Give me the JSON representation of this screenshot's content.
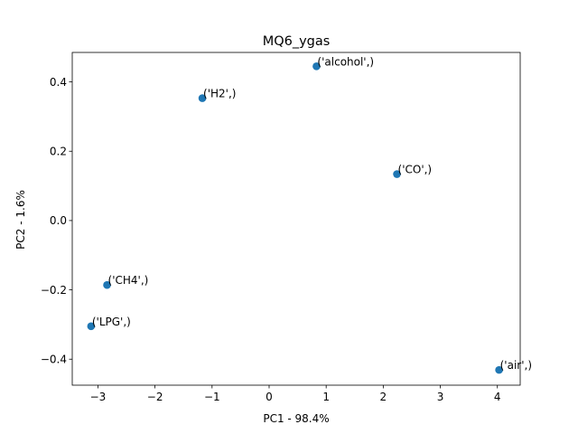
{
  "chart_data": {
    "type": "scatter",
    "title": "MQ6_ygas",
    "xlabel": "PC1 - 98.4%",
    "ylabel": "PC2 - 1.6%",
    "xlim": [
      -3.45,
      4.4
    ],
    "ylim": [
      -0.475,
      0.485
    ],
    "xticks": [
      -3,
      -2,
      -1,
      0,
      1,
      2,
      3,
      4
    ],
    "xtick_labels": [
      "−3",
      "−2",
      "−1",
      "0",
      "1",
      "2",
      "3",
      "4"
    ],
    "yticks": [
      -0.4,
      -0.2,
      0.0,
      0.2,
      0.4
    ],
    "ytick_labels": [
      "−0.4",
      "−0.2",
      "0.0",
      "0.2",
      "0.4"
    ],
    "grid": false,
    "legend": "none",
    "marker_color": "#1f77b4",
    "points": [
      {
        "label": "('alcohol',)",
        "x": 0.83,
        "y": 0.445
      },
      {
        "label": "('H2',)",
        "x": -1.17,
        "y": 0.353
      },
      {
        "label": "('CO',)",
        "x": 2.24,
        "y": 0.134
      },
      {
        "label": "('CH4',)",
        "x": -2.84,
        "y": -0.186
      },
      {
        "label": "('LPG',)",
        "x": -3.12,
        "y": -0.305
      },
      {
        "label": "('air',)",
        "x": 4.03,
        "y": -0.431
      }
    ]
  }
}
